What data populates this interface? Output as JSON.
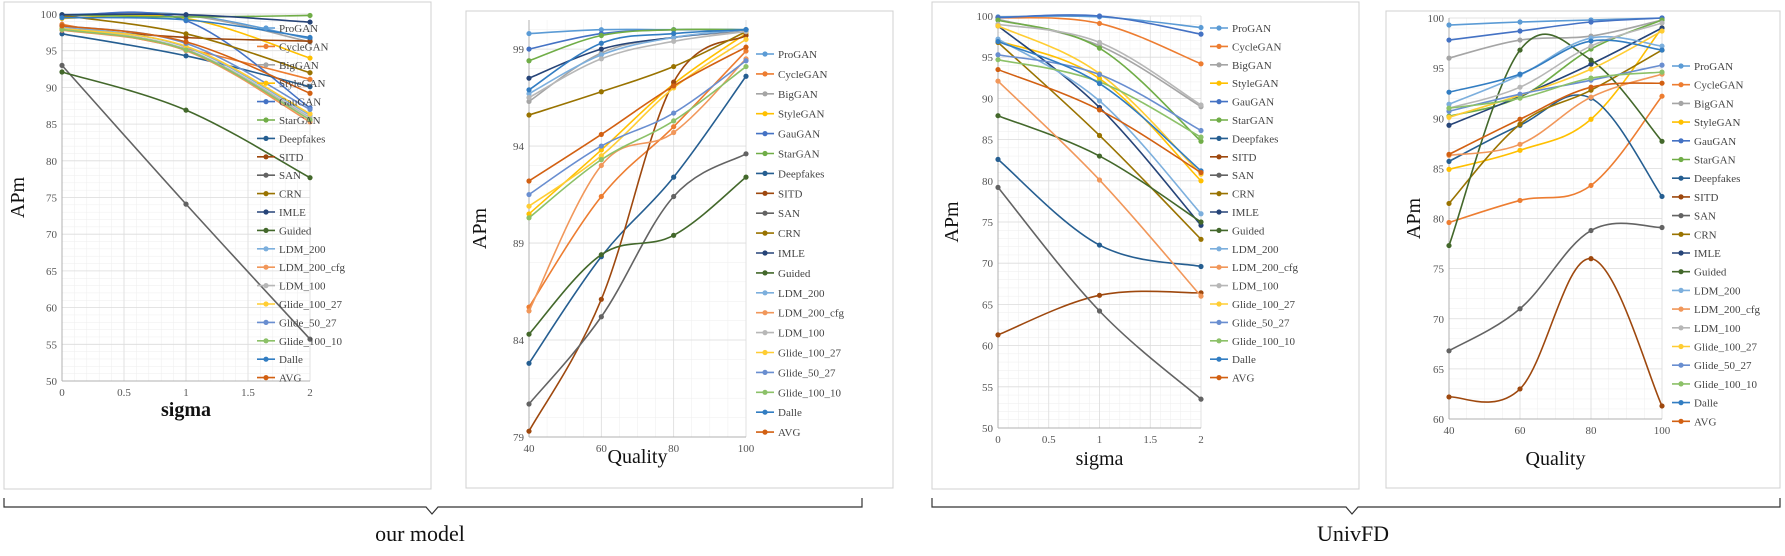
{
  "series_colors": {
    "ProGAN": "#5b9bd5",
    "CycleGAN": "#ed7d31",
    "BigGAN": "#a5a5a5",
    "StyleGAN": "#ffc000",
    "GauGAN": "#4472c4",
    "StarGAN": "#70ad47",
    "Deepfakes": "#255e91",
    "SITD": "#9e480e",
    "SAN": "#636363",
    "CRN": "#997300",
    "IMLE": "#264478",
    "Guided": "#43682b",
    "LDM_200": "#7cafdd",
    "LDM_200_cfg": "#f1975a",
    "LDM_100": "#b7b7b7",
    "Glide_100_27": "#ffcd33",
    "Glide_50_27": "#698ed0",
    "Glide_100_10": "#8cc168",
    "Dalle": "#327dc2",
    "AVG": "#d26012"
  },
  "groups": [
    {
      "label": "our model"
    },
    {
      "label": "UnivFD"
    }
  ],
  "chart_data": [
    {
      "type": "line",
      "xlabel": "sigma",
      "ylabel": "APm",
      "x": [
        0,
        1,
        2
      ],
      "xticks": [
        "0",
        "0.5",
        "1",
        "1.5",
        "2"
      ],
      "xtick_values": [
        0,
        0.5,
        1,
        1.5,
        2
      ],
      "xlim": [
        0,
        2
      ],
      "ylim": [
        50,
        100
      ],
      "yticks": [
        50,
        55,
        60,
        65,
        70,
        75,
        80,
        85,
        90,
        95,
        100
      ],
      "minor_x_step": 0.1,
      "minor_y_step": 1,
      "series": [
        {
          "name": "ProGAN",
          "values": [
            99.9,
            99.9,
            96.6
          ]
        },
        {
          "name": "CycleGAN",
          "values": [
            98.6,
            95.3,
            91.1
          ]
        },
        {
          "name": "BigGAN",
          "values": [
            99.7,
            99.8,
            96.2
          ]
        },
        {
          "name": "StyleGAN",
          "values": [
            99.4,
            99.4,
            94.0
          ]
        },
        {
          "name": "GauGAN",
          "values": [
            99.7,
            99.1,
            87.2
          ]
        },
        {
          "name": "StarGAN",
          "values": [
            99.9,
            99.6,
            99.8
          ]
        },
        {
          "name": "Deepfakes",
          "values": [
            97.3,
            94.3,
            90.1
          ]
        },
        {
          "name": "SITD",
          "values": [
            98.1,
            96.8,
            96.3
          ]
        },
        {
          "name": "SAN",
          "values": [
            93.0,
            74.1,
            55.7
          ]
        },
        {
          "name": "CRN",
          "values": [
            99.8,
            97.3,
            92.0
          ]
        },
        {
          "name": "IMLE",
          "values": [
            99.9,
            99.9,
            98.9
          ]
        },
        {
          "name": "Guided",
          "values": [
            92.1,
            86.9,
            77.7
          ]
        },
        {
          "name": "LDM_200",
          "values": [
            98.3,
            95.5,
            86.2
          ]
        },
        {
          "name": "LDM_200_cfg",
          "values": [
            97.8,
            95.0,
            85.3
          ]
        },
        {
          "name": "LDM_100",
          "values": [
            98.1,
            95.2,
            85.9
          ]
        },
        {
          "name": "Glide_100_27",
          "values": [
            98.0,
            95.6,
            86.4
          ]
        },
        {
          "name": "Glide_50_27",
          "values": [
            98.4,
            96.0,
            87.0
          ]
        },
        {
          "name": "Glide_100_10",
          "values": [
            97.9,
            95.1,
            85.6
          ]
        },
        {
          "name": "Dalle",
          "values": [
            99.5,
            99.2,
            96.8
          ]
        },
        {
          "name": "AVG",
          "values": [
            98.4,
            96.2,
            89.2
          ]
        }
      ]
    },
    {
      "type": "line",
      "xlabel": "Quality",
      "ylabel": "APm",
      "x": [
        40,
        60,
        80,
        100
      ],
      "xticks": [
        "40",
        "60",
        "80",
        "100"
      ],
      "xtick_values": [
        40,
        60,
        80,
        100
      ],
      "xlim": [
        40,
        100
      ],
      "ylim": [
        79,
        100.5
      ],
      "yticks": [
        79,
        84,
        89,
        94,
        99
      ],
      "minor_x_step": 5,
      "minor_y_step": 1,
      "series": [
        {
          "name": "ProGAN",
          "values": [
            99.8,
            100.0,
            100.0,
            100.0
          ]
        },
        {
          "name": "CycleGAN",
          "values": [
            85.7,
            91.4,
            95.0,
            98.9
          ]
        },
        {
          "name": "BigGAN",
          "values": [
            96.3,
            98.8,
            99.6,
            99.9
          ]
        },
        {
          "name": "StyleGAN",
          "values": [
            90.5,
            93.8,
            97.2,
            99.8
          ]
        },
        {
          "name": "GauGAN",
          "values": [
            99.0,
            99.8,
            100.0,
            100.0
          ]
        },
        {
          "name": "StarGAN",
          "values": [
            98.4,
            99.7,
            100.0,
            100.0
          ]
        },
        {
          "name": "Deepfakes",
          "values": [
            82.8,
            88.3,
            92.4,
            97.6
          ]
        },
        {
          "name": "SITD",
          "values": [
            79.3,
            86.1,
            97.3,
            99.7
          ]
        },
        {
          "name": "SAN",
          "values": [
            80.7,
            85.2,
            91.4,
            93.6
          ]
        },
        {
          "name": "CRN",
          "values": [
            95.6,
            96.8,
            98.1,
            99.9
          ]
        },
        {
          "name": "IMLE",
          "values": [
            97.5,
            99.0,
            99.6,
            100.0
          ]
        },
        {
          "name": "Guided",
          "values": [
            84.3,
            88.4,
            89.4,
            92.4
          ]
        },
        {
          "name": "LDM_200",
          "values": [
            96.7,
            98.7,
            99.6,
            100.0
          ]
        },
        {
          "name": "LDM_200_cfg",
          "values": [
            85.5,
            93.0,
            94.7,
            98.5
          ]
        },
        {
          "name": "LDM_100",
          "values": [
            96.5,
            98.5,
            99.4,
            99.9
          ]
        },
        {
          "name": "Glide_100_27",
          "values": [
            90.9,
            93.5,
            97.0,
            99.5
          ]
        },
        {
          "name": "Glide_50_27",
          "values": [
            91.5,
            94.0,
            95.7,
            98.4
          ]
        },
        {
          "name": "Glide_100_10",
          "values": [
            90.3,
            93.3,
            95.3,
            98.1
          ]
        },
        {
          "name": "Dalle",
          "values": [
            96.9,
            99.3,
            99.8,
            100.0
          ]
        },
        {
          "name": "AVG",
          "values": [
            92.2,
            94.6,
            97.1,
            99.1
          ]
        }
      ]
    },
    {
      "type": "line",
      "xlabel": "sigma",
      "ylabel": "APm",
      "x": [
        0,
        1,
        2
      ],
      "xticks": [
        "0",
        "0.5",
        "1",
        "1.5",
        "2"
      ],
      "xtick_values": [
        0,
        0.5,
        1,
        1.5,
        2
      ],
      "xlim": [
        0,
        2
      ],
      "ylim": [
        50,
        100
      ],
      "yticks": [
        50,
        55,
        60,
        65,
        70,
        75,
        80,
        85,
        90,
        95,
        100
      ],
      "minor_x_step": 0.1,
      "minor_y_step": 1,
      "series": [
        {
          "name": "ProGAN",
          "values": [
            99.9,
            99.9,
            98.6
          ]
        },
        {
          "name": "CycleGAN",
          "values": [
            99.8,
            99.1,
            94.2
          ]
        },
        {
          "name": "BigGAN",
          "values": [
            99.6,
            96.4,
            89.0
          ]
        },
        {
          "name": "StyleGAN",
          "values": [
            97.0,
            92.4,
            80.0
          ]
        },
        {
          "name": "GauGAN",
          "values": [
            99.8,
            100.0,
            97.8
          ]
        },
        {
          "name": "StarGAN",
          "values": [
            99.5,
            96.1,
            84.8
          ]
        },
        {
          "name": "Deepfakes",
          "values": [
            82.6,
            72.2,
            69.6
          ]
        },
        {
          "name": "SITD",
          "values": [
            61.3,
            66.1,
            66.4
          ]
        },
        {
          "name": "SAN",
          "values": [
            79.2,
            64.2,
            53.5
          ]
        },
        {
          "name": "CRN",
          "values": [
            96.8,
            85.5,
            72.9
          ]
        },
        {
          "name": "IMLE",
          "values": [
            98.8,
            88.9,
            74.6
          ]
        },
        {
          "name": "Guided",
          "values": [
            87.9,
            83.0,
            75.0
          ]
        },
        {
          "name": "LDM_200",
          "values": [
            97.2,
            89.7,
            76.0
          ]
        },
        {
          "name": "LDM_200_cfg",
          "values": [
            92.1,
            80.1,
            66.0
          ]
        },
        {
          "name": "LDM_100",
          "values": [
            99.0,
            96.8,
            89.2
          ]
        },
        {
          "name": "Glide_100_27",
          "values": [
            98.8,
            93.0,
            80.8
          ]
        },
        {
          "name": "Glide_50_27",
          "values": [
            95.3,
            92.9,
            86.1
          ]
        },
        {
          "name": "Glide_100_10",
          "values": [
            94.7,
            92.0,
            85.3
          ]
        },
        {
          "name": "Dalle",
          "values": [
            96.9,
            91.8,
            81.2
          ]
        },
        {
          "name": "AVG",
          "values": [
            93.5,
            88.6,
            81.0
          ]
        }
      ]
    },
    {
      "type": "line",
      "xlabel": "Quality",
      "ylabel": "APm",
      "x": [
        40,
        60,
        80,
        100
      ],
      "xticks": [
        "40",
        "60",
        "80",
        "100"
      ],
      "xtick_values": [
        40,
        60,
        80,
        100
      ],
      "xlim": [
        40,
        100
      ],
      "ylim": [
        60,
        100
      ],
      "yticks": [
        60,
        65,
        70,
        75,
        80,
        85,
        90,
        95,
        100
      ],
      "minor_x_step": 5,
      "minor_y_step": 1,
      "series": [
        {
          "name": "ProGAN",
          "values": [
            99.3,
            99.6,
            99.8,
            100.0
          ]
        },
        {
          "name": "CycleGAN",
          "values": [
            79.6,
            81.8,
            83.3,
            92.2
          ]
        },
        {
          "name": "BigGAN",
          "values": [
            96.0,
            97.8,
            98.2,
            99.8
          ]
        },
        {
          "name": "StyleGAN",
          "values": [
            84.9,
            86.8,
            89.9,
            99.0
          ]
        },
        {
          "name": "GauGAN",
          "values": [
            97.8,
            98.7,
            99.6,
            100.0
          ]
        },
        {
          "name": "StarGAN",
          "values": [
            90.2,
            92.1,
            96.9,
            99.8
          ]
        },
        {
          "name": "Deepfakes",
          "values": [
            85.7,
            89.3,
            92.0,
            82.2
          ]
        },
        {
          "name": "SITD",
          "values": [
            62.2,
            63.0,
            76.0,
            61.3
          ]
        },
        {
          "name": "SAN",
          "values": [
            66.8,
            71.0,
            78.8,
            79.1
          ]
        },
        {
          "name": "CRN",
          "values": [
            81.5,
            89.4,
            92.8,
            96.8
          ]
        },
        {
          "name": "IMLE",
          "values": [
            89.3,
            92.2,
            95.4,
            99.0
          ]
        },
        {
          "name": "Guided",
          "values": [
            77.3,
            96.8,
            95.8,
            87.7
          ]
        },
        {
          "name": "LDM_200",
          "values": [
            91.4,
            94.3,
            98.0,
            97.2
          ]
        },
        {
          "name": "LDM_200_cfg",
          "values": [
            86.3,
            87.4,
            92.1,
            94.4
          ]
        },
        {
          "name": "LDM_100",
          "values": [
            91.0,
            93.1,
            97.2,
            99.5
          ]
        },
        {
          "name": "Glide_100_27",
          "values": [
            90.1,
            92.3,
            94.9,
            98.7
          ]
        },
        {
          "name": "Glide_50_27",
          "values": [
            90.7,
            92.4,
            93.8,
            95.3
          ]
        },
        {
          "name": "Glide_100_10",
          "values": [
            91.0,
            92.0,
            94.0,
            94.6
          ]
        },
        {
          "name": "Dalle",
          "values": [
            92.6,
            94.4,
            97.7,
            96.8
          ]
        },
        {
          "name": "AVG",
          "values": [
            86.4,
            89.9,
            93.1,
            93.5
          ]
        }
      ]
    }
  ]
}
